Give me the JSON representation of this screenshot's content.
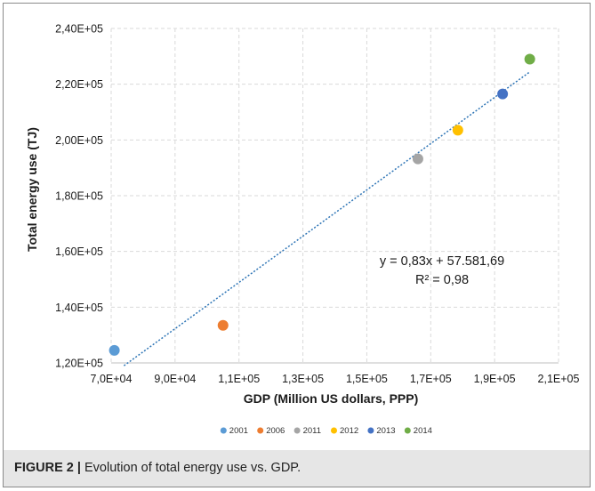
{
  "caption": {
    "label": "FIGURE 2 |",
    "text": " Evolution of total energy use vs. GDP."
  },
  "chart_data": {
    "type": "scatter",
    "title": "",
    "xlabel": "GDP (Million US dollars, PPP)",
    "ylabel": "Total energy use (TJ)",
    "xlim": [
      70000,
      210000
    ],
    "ylim": [
      120000,
      240000
    ],
    "x_ticks": [
      70000,
      90000,
      110000,
      130000,
      150000,
      170000,
      190000,
      210000
    ],
    "x_tick_labels": [
      "7,0E+04",
      "9,0E+04",
      "1,1E+05",
      "1,3E+05",
      "1,5E+05",
      "1,7E+05",
      "1,9E+05",
      "2,1E+05"
    ],
    "y_ticks": [
      120000,
      140000,
      160000,
      180000,
      200000,
      220000,
      240000
    ],
    "y_tick_labels": [
      "1,20E+05",
      "1,40E+05",
      "1,60E+05",
      "1,80E+05",
      "2,00E+05",
      "2,20E+05",
      "2,40E+05"
    ],
    "grid": true,
    "legend_position": "bottom",
    "series": [
      {
        "name": "2001",
        "color": "#5b9bd5",
        "x": [
          71000
        ],
        "y": [
          124500
        ]
      },
      {
        "name": "2006",
        "color": "#ed7d31",
        "x": [
          105000
        ],
        "y": [
          133500
        ]
      },
      {
        "name": "2011",
        "color": "#a5a5a5",
        "x": [
          166000
        ],
        "y": [
          193200
        ]
      },
      {
        "name": "2012",
        "color": "#ffc000",
        "x": [
          178500
        ],
        "y": [
          203500
        ]
      },
      {
        "name": "2013",
        "color": "#4472c4",
        "x": [
          192500
        ],
        "y": [
          216500
        ]
      },
      {
        "name": "2014",
        "color": "#70ad47",
        "x": [
          201000
        ],
        "y": [
          229000
        ]
      }
    ],
    "trendline": {
      "slope": 0.83,
      "intercept": 57581.69,
      "x_range": [
        74000,
        201000
      ],
      "color": "#2e75b6",
      "equation": "y = 0,83x + 57.581,69",
      "r_squared": "R² = 0,98"
    }
  }
}
